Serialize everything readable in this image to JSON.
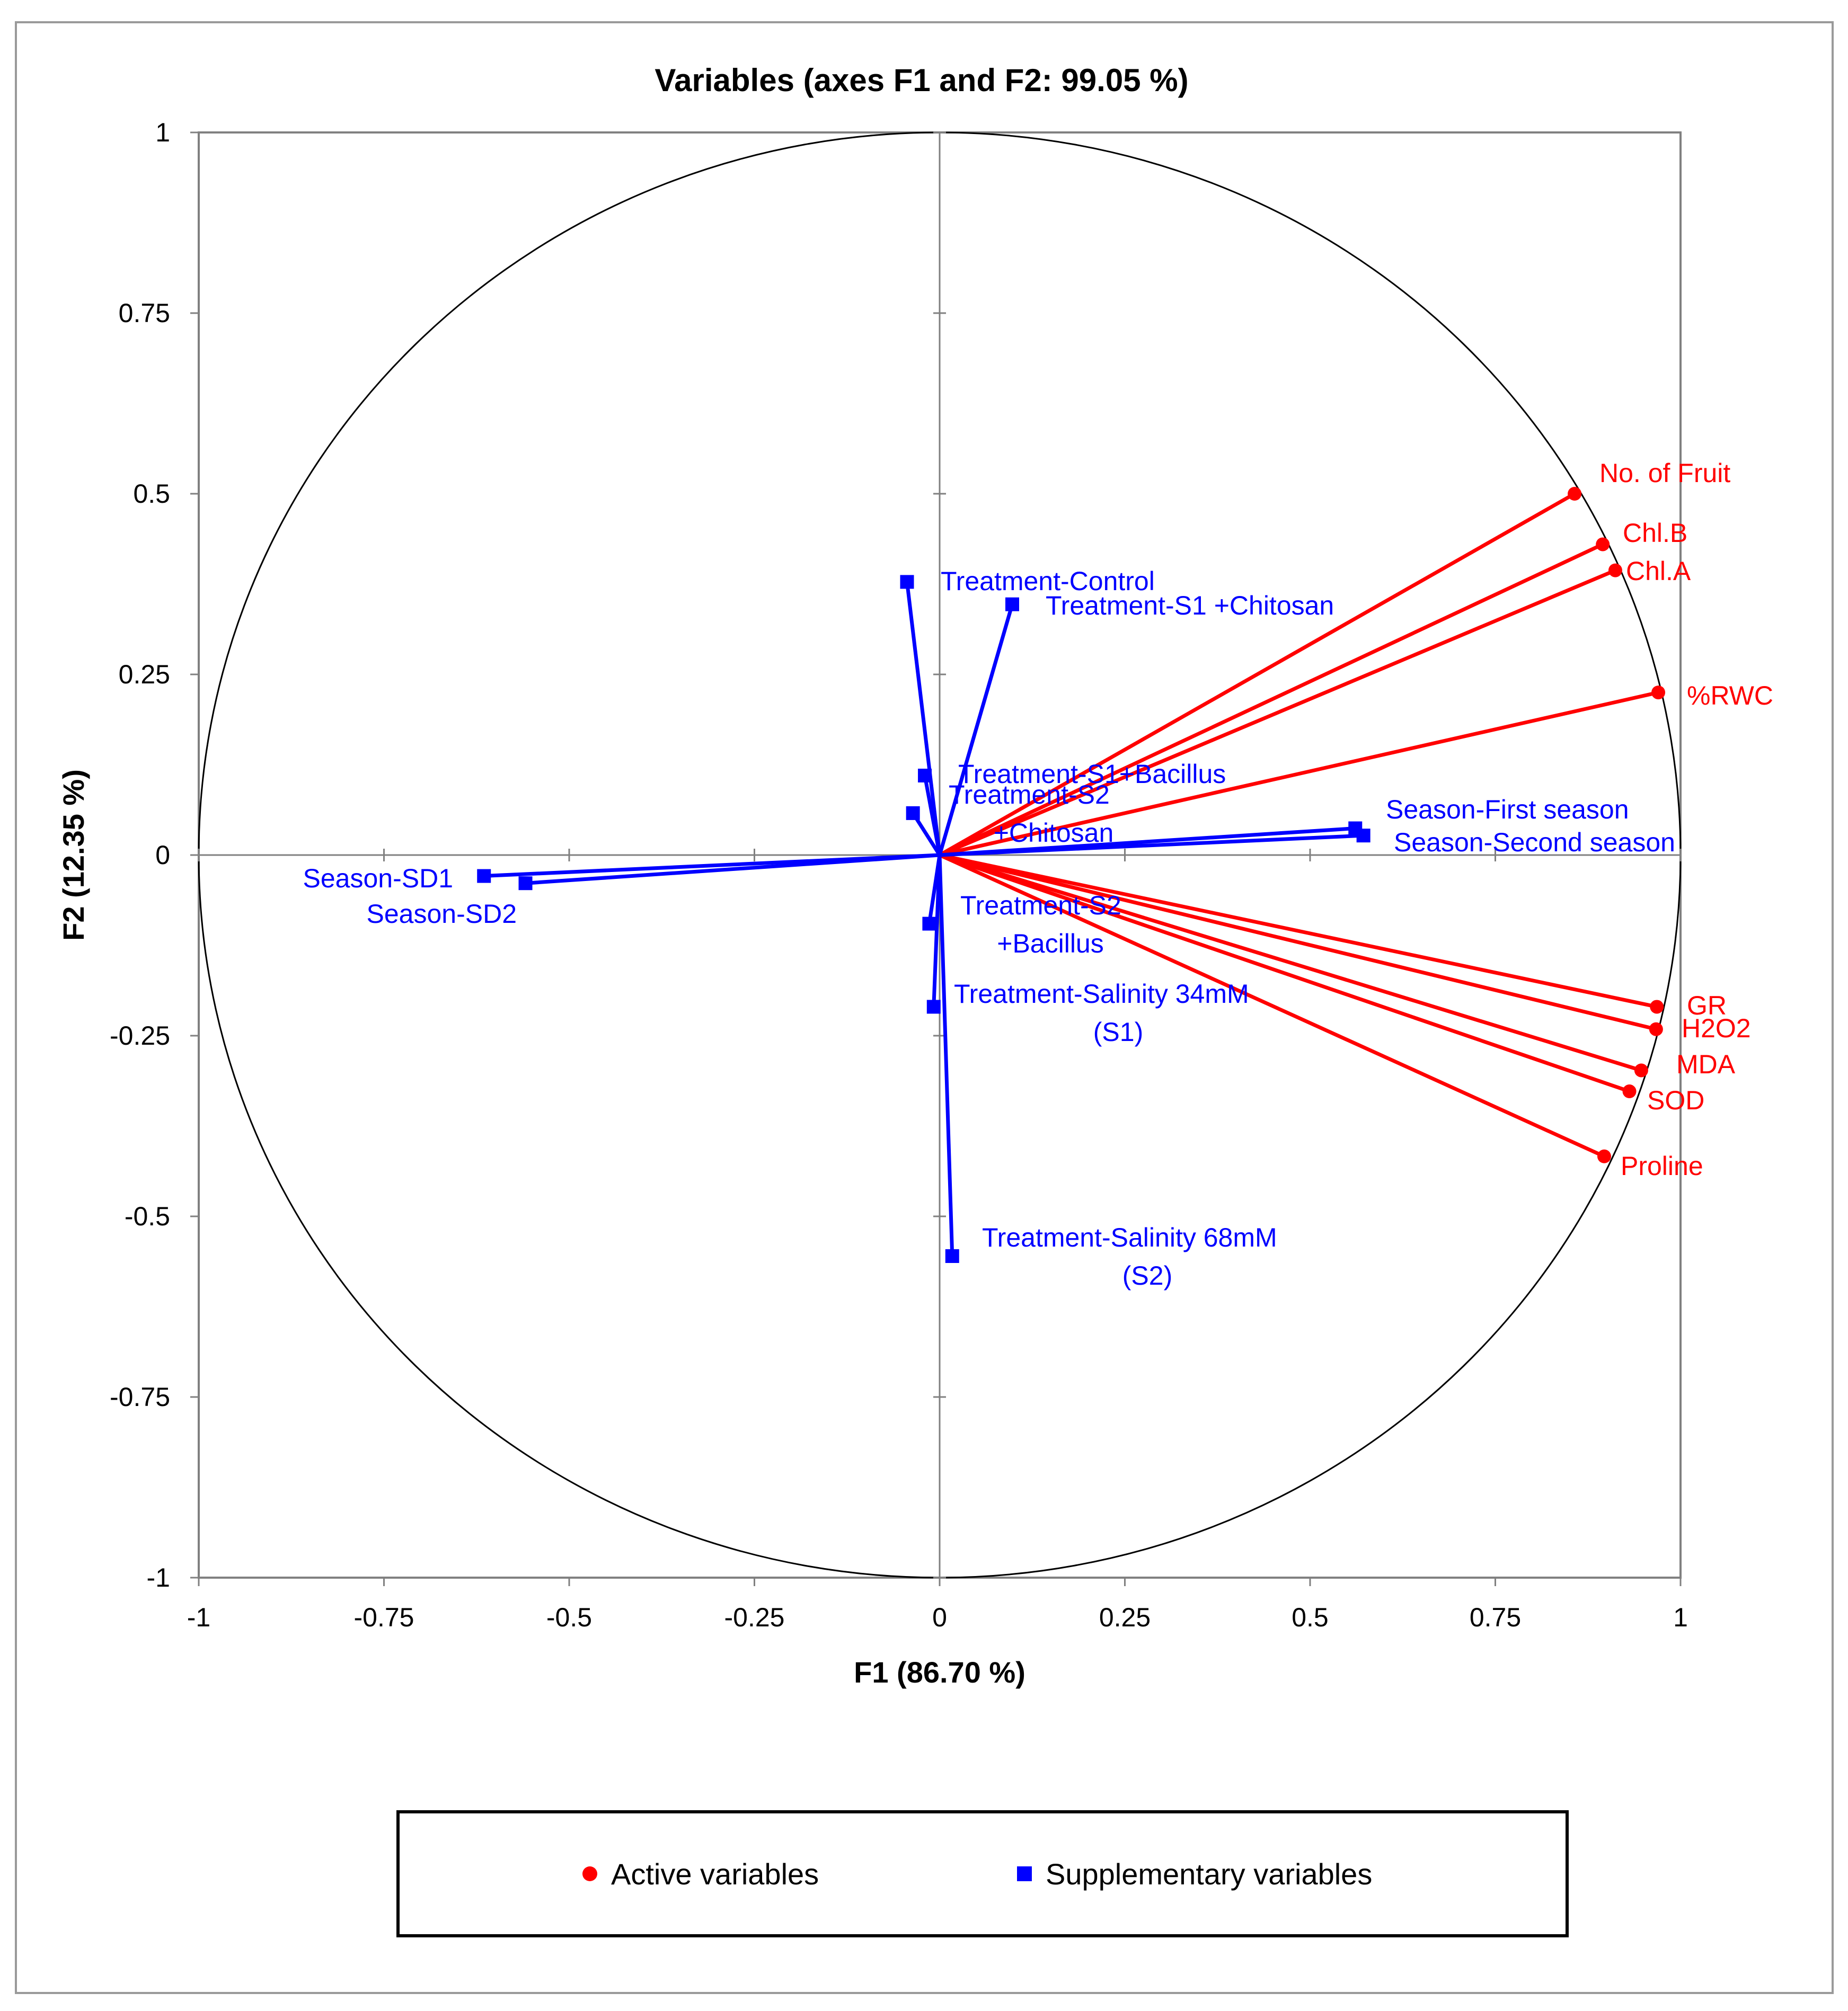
{
  "chart_data": {
    "type": "scatter",
    "title": "Variables (axes F1 and F2: 99.05 %)",
    "xlabel": "F1 (86.70 %)",
    "ylabel": "F2 (12.35 %)",
    "xlim": [
      -1,
      1
    ],
    "ylim": [
      -1,
      1
    ],
    "x_ticks": [
      "-1",
      "-0.75",
      "-0.5",
      "-0.25",
      "0",
      "0.25",
      "0.5",
      "0.75",
      "1"
    ],
    "y_ticks": [
      "1",
      "0.75",
      "0.5",
      "0.25",
      "0",
      "-0.25",
      "-0.5",
      "-0.75",
      "-1"
    ],
    "unit_circle": true,
    "colors": {
      "active": "#ff0000",
      "supplementary": "#0000ff"
    },
    "series": [
      {
        "name": "Active variables",
        "marker": "circle",
        "color": "#ff0000",
        "points": [
          {
            "label": "No. of Fruit",
            "x": 0.857,
            "y": 0.5
          },
          {
            "label": "Chl.B",
            "x": 0.895,
            "y": 0.43
          },
          {
            "label": "Chl.A",
            "x": 0.912,
            "y": 0.394
          },
          {
            "label": "%RWC",
            "x": 0.97,
            "y": 0.225
          },
          {
            "label": "GR",
            "x": 0.968,
            "y": -0.21
          },
          {
            "label": "H2O2",
            "x": 0.967,
            "y": -0.241
          },
          {
            "label": "MDA",
            "x": 0.947,
            "y": -0.298
          },
          {
            "label": "SOD",
            "x": 0.931,
            "y": -0.327
          },
          {
            "label": "Proline",
            "x": 0.897,
            "y": -0.417
          }
        ]
      },
      {
        "name": "Supplementary variables",
        "marker": "square",
        "color": "#0000ff",
        "points": [
          {
            "label": "Treatment-Control",
            "x": -0.044,
            "y": 0.378
          },
          {
            "label": "Treatment-S1 +Chitosan",
            "x": 0.098,
            "y": 0.347
          },
          {
            "label": "Treatment-S1+Bacillus",
            "x": -0.02,
            "y": 0.11
          },
          {
            "label": "Treatment-S2 +Chitosan",
            "x": -0.036,
            "y": 0.058
          },
          {
            "label": "Season-First season",
            "x": 0.561,
            "y": 0.037
          },
          {
            "label": "Season-Second season",
            "x": 0.572,
            "y": 0.027
          },
          {
            "label": "Season-SD1",
            "x": -0.615,
            "y": -0.029
          },
          {
            "label": "Season-SD2",
            "x": -0.559,
            "y": -0.039
          },
          {
            "label": "Treatment-S2 +Bacillus",
            "x": -0.014,
            "y": -0.095
          },
          {
            "label": "Treatment-Salinity 34mM (S1)",
            "x": -0.008,
            "y": -0.21
          },
          {
            "label": "Treatment-Salinity 68mM (S2)",
            "x": 0.017,
            "y": -0.555
          }
        ]
      }
    ],
    "point_labels": [
      {
        "lines": [
          "No. of Fruit"
        ],
        "color": "#ff0000"
      },
      {
        "lines": [
          "Chl.B"
        ],
        "color": "#ff0000"
      },
      {
        "lines": [
          "Chl.A"
        ],
        "color": "#ff0000"
      },
      {
        "lines": [
          "%RWC"
        ],
        "color": "#ff0000"
      },
      {
        "lines": [
          "GR"
        ],
        "color": "#ff0000"
      },
      {
        "lines": [
          "H2O2"
        ],
        "color": "#ff0000"
      },
      {
        "lines": [
          "MDA"
        ],
        "color": "#ff0000"
      },
      {
        "lines": [
          "SOD"
        ],
        "color": "#ff0000"
      },
      {
        "lines": [
          "Proline"
        ],
        "color": "#ff0000"
      },
      {
        "lines": [
          "Treatment-Control"
        ],
        "color": "#0000ff"
      },
      {
        "lines": [
          "Treatment-S1 +Chitosan"
        ],
        "color": "#0000ff"
      },
      {
        "lines": [
          "Treatment-S1+Bacillus"
        ],
        "color": "#0000ff"
      },
      {
        "lines": [
          "Treatment-S2",
          "+Chitosan"
        ],
        "color": "#0000ff"
      },
      {
        "lines": [
          "Season-First season"
        ],
        "color": "#0000ff"
      },
      {
        "lines": [
          "Season-Second season"
        ],
        "color": "#0000ff"
      },
      {
        "lines": [
          "Season-SD1"
        ],
        "color": "#0000ff"
      },
      {
        "lines": [
          "Season-SD2"
        ],
        "color": "#0000ff"
      },
      {
        "lines": [
          "Treatment-S2",
          "+Bacillus"
        ],
        "color": "#0000ff"
      },
      {
        "lines": [
          "Treatment-Salinity 34mM",
          "(S1)"
        ],
        "color": "#0000ff"
      },
      {
        "lines": [
          "Treatment-Salinity 68mM",
          "(S2)"
        ],
        "color": "#0000ff"
      }
    ],
    "legend": {
      "position": "bottom",
      "items": [
        {
          "label": "Active variables",
          "marker": "circle",
          "color": "#ff0000"
        },
        {
          "label": "Supplementary variables",
          "marker": "square",
          "color": "#0000ff"
        }
      ]
    }
  }
}
